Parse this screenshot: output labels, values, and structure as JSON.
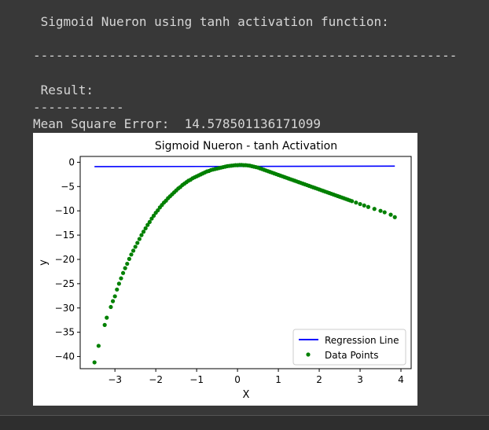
{
  "output": {
    "heading": " Sigmoid Nueron using tanh activation function:",
    "separator_long": "--------------------------------------------------------",
    "result_label": " Result:",
    "separator_short": "------------",
    "mse_line": "Mean Square Error:  14.578501136171099"
  },
  "chart_data": {
    "type": "scatter",
    "title": "Sigmoid Nueron - tanh Activation",
    "xlabel": "X",
    "ylabel": "y",
    "xlim": [
      -3.85,
      4.25
    ],
    "ylim": [
      -42.5,
      1.2
    ],
    "xticks": [
      -3,
      -2,
      -1,
      0,
      1,
      2,
      3,
      4
    ],
    "xtick_labels": [
      "−3",
      "−2",
      "−1",
      "0",
      "1",
      "2",
      "3",
      "4"
    ],
    "yticks": [
      0,
      -5,
      -10,
      -15,
      -20,
      -25,
      -30,
      -35,
      -40
    ],
    "ytick_labels": [
      "0",
      "−5",
      "−10",
      "−15",
      "−20",
      "−25",
      "−30",
      "−35",
      "−40"
    ],
    "grid": false,
    "legend_position": "lower-right",
    "series": [
      {
        "name": "Regression Line",
        "kind": "line",
        "color": "#0000ff",
        "x": [
          -3.5,
          3.85
        ],
        "y": [
          -0.9,
          -0.8
        ]
      },
      {
        "name": "Data Points",
        "kind": "scatter",
        "color": "#008000",
        "x": [
          -3.5,
          -3.4,
          -3.25,
          -3.2,
          -3.1,
          -3.05,
          -3.0,
          -2.95,
          -2.9,
          -2.85,
          -2.8,
          -2.75,
          -2.7,
          -2.65,
          -2.6,
          -2.55,
          -2.5,
          -2.45,
          -2.4,
          -2.35,
          -2.3,
          -2.25,
          -2.2,
          -2.15,
          -2.1,
          -2.05,
          -2.0,
          -1.95,
          -1.9,
          -1.85,
          -1.8,
          -1.75,
          -1.7,
          -1.65,
          -1.6,
          -1.55,
          -1.5,
          -1.45,
          -1.4,
          -1.35,
          -1.3,
          -1.25,
          -1.2,
          -1.15,
          -1.1,
          -1.05,
          -1.0,
          -0.95,
          -0.9,
          -0.85,
          -0.8,
          -0.75,
          -0.7,
          -0.65,
          -0.6,
          -0.55,
          -0.5,
          -0.45,
          -0.4,
          -0.35,
          -0.3,
          -0.25,
          -0.2,
          -0.15,
          -0.1,
          -0.05,
          0.0,
          0.05,
          0.1,
          0.15,
          0.2,
          0.25,
          0.3,
          0.35,
          0.4,
          0.45,
          0.5,
          0.55,
          0.6,
          0.65,
          0.7,
          0.75,
          0.8,
          0.85,
          0.9,
          0.95,
          1.0,
          1.05,
          1.1,
          1.15,
          1.2,
          1.25,
          1.3,
          1.35,
          1.4,
          1.45,
          1.5,
          1.55,
          1.6,
          1.65,
          1.7,
          1.75,
          1.8,
          1.85,
          1.9,
          1.95,
          2.0,
          2.05,
          2.1,
          2.15,
          2.2,
          2.25,
          2.3,
          2.35,
          2.4,
          2.45,
          2.5,
          2.55,
          2.6,
          2.65,
          2.7,
          2.75,
          2.8,
          2.9,
          3.0,
          3.1,
          3.2,
          3.35,
          3.5,
          3.6,
          3.75,
          3.85
        ],
        "y": [
          -41.2,
          -37.8,
          -33.5,
          -32.0,
          -29.8,
          -28.6,
          -27.6,
          -26.2,
          -25.0,
          -23.9,
          -22.8,
          -21.8,
          -20.9,
          -19.9,
          -19.0,
          -18.2,
          -17.4,
          -16.6,
          -15.8,
          -15.0,
          -14.3,
          -13.6,
          -12.9,
          -12.3,
          -11.6,
          -11.0,
          -10.4,
          -9.9,
          -9.3,
          -8.8,
          -8.3,
          -7.9,
          -7.4,
          -7.0,
          -6.6,
          -6.2,
          -5.8,
          -5.4,
          -5.1,
          -4.7,
          -4.4,
          -4.1,
          -3.8,
          -3.6,
          -3.3,
          -3.1,
          -2.9,
          -2.7,
          -2.5,
          -2.3,
          -2.1,
          -1.9,
          -1.8,
          -1.6,
          -1.5,
          -1.4,
          -1.3,
          -1.2,
          -1.1,
          -1.0,
          -0.9,
          -0.8,
          -0.75,
          -0.7,
          -0.65,
          -0.6,
          -0.6,
          -0.55,
          -0.55,
          -0.6,
          -0.6,
          -0.65,
          -0.7,
          -0.8,
          -0.9,
          -1.0,
          -1.1,
          -1.25,
          -1.4,
          -1.55,
          -1.7,
          -1.85,
          -2.0,
          -2.15,
          -2.3,
          -2.45,
          -2.6,
          -2.75,
          -2.9,
          -3.05,
          -3.2,
          -3.35,
          -3.5,
          -3.65,
          -3.8,
          -3.95,
          -4.1,
          -4.25,
          -4.4,
          -4.55,
          -4.7,
          -4.85,
          -5.0,
          -5.15,
          -5.3,
          -5.45,
          -5.6,
          -5.75,
          -5.9,
          -6.05,
          -6.2,
          -6.35,
          -6.5,
          -6.65,
          -6.8,
          -6.95,
          -7.1,
          -7.25,
          -7.4,
          -7.55,
          -7.7,
          -7.85,
          -8.0,
          -8.3,
          -8.6,
          -8.9,
          -9.2,
          -9.6,
          -10.0,
          -10.3,
          -10.8,
          -11.3
        ]
      }
    ]
  }
}
